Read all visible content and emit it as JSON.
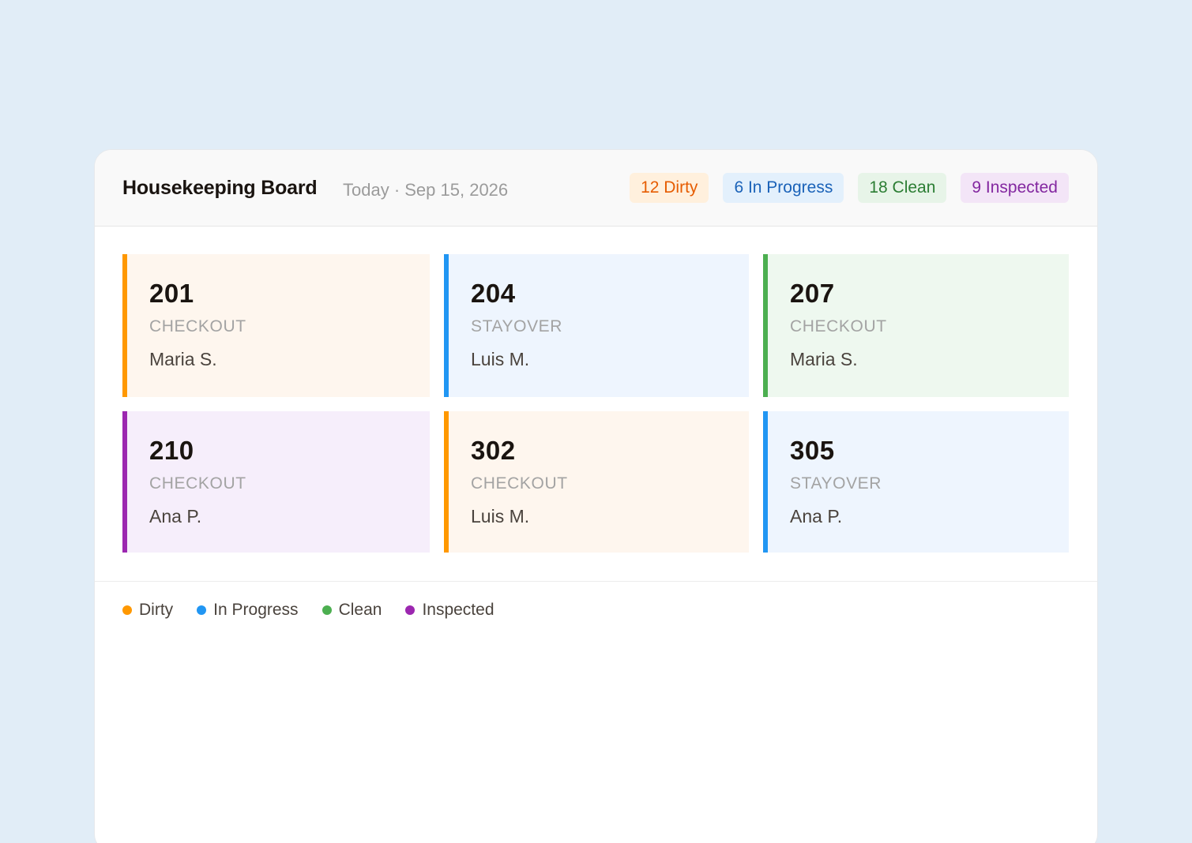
{
  "header": {
    "title": "Housekeeping Board",
    "date": "Today · Sep 15, 2026"
  },
  "badges": [
    {
      "label": "12 Dirty",
      "bg": "#fff0dd",
      "fg": "#e65c00"
    },
    {
      "label": "6 In Progress",
      "bg": "#e3f0fc",
      "fg": "#1a62b8"
    },
    {
      "label": "18 Clean",
      "bg": "#e7f4e8",
      "fg": "#2b7d33"
    },
    {
      "label": "9 Inspected",
      "bg": "#f3e5f7",
      "fg": "#8327a0"
    }
  ],
  "colors": {
    "dirty": "#ff9800",
    "in_progress": "#2196f3",
    "clean": "#4caf50",
    "inspected": "#9c27b0",
    "dirty_bg": "#fef6ee",
    "in_progress_bg": "#eef5fe",
    "clean_bg": "#eef8ef",
    "inspected_bg": "#f6eefb"
  },
  "rooms": [
    {
      "number": "201",
      "type": "CHECKOUT",
      "assignee": "Maria S.",
      "status": "dirty"
    },
    {
      "number": "204",
      "type": "STAYOVER",
      "assignee": "Luis M.",
      "status": "in_progress"
    },
    {
      "number": "207",
      "type": "CHECKOUT",
      "assignee": "Maria S.",
      "status": "clean"
    },
    {
      "number": "210",
      "type": "CHECKOUT",
      "assignee": "Ana P.",
      "status": "inspected"
    },
    {
      "number": "302",
      "type": "CHECKOUT",
      "assignee": "Luis M.",
      "status": "dirty"
    },
    {
      "number": "305",
      "type": "STAYOVER",
      "assignee": "Ana P.",
      "status": "in_progress"
    }
  ],
  "legend": [
    {
      "label": "Dirty",
      "status": "dirty"
    },
    {
      "label": "In Progress",
      "status": "in_progress"
    },
    {
      "label": "Clean",
      "status": "clean"
    },
    {
      "label": "Inspected",
      "status": "inspected"
    }
  ]
}
